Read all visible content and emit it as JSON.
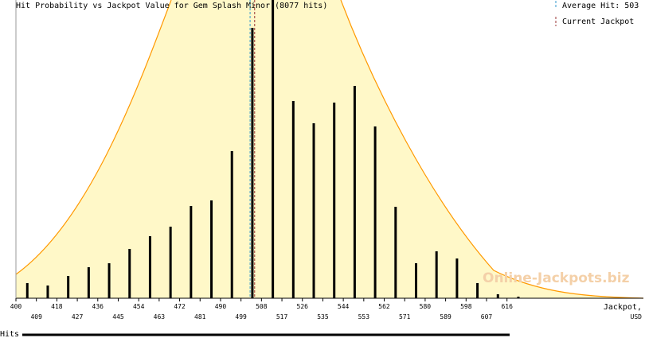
{
  "chart_data": {
    "type": "bar",
    "title": "Hit Probability vs Jackpot Value for Gem Splash Minor (8077 hits)",
    "x": [
      405,
      414,
      423,
      432,
      441,
      450,
      459,
      468,
      477,
      486,
      495,
      504,
      513,
      522,
      531,
      540,
      549,
      558,
      567,
      576,
      585,
      594,
      603,
      612,
      621
    ],
    "values": [
      19,
      16,
      28,
      39,
      44,
      62,
      78,
      90,
      116,
      123,
      185,
      340,
      375,
      248,
      220,
      246,
      267,
      216,
      115,
      44,
      59,
      50,
      19,
      5,
      2
    ],
    "color": "#000000",
    "xlim": [
      400,
      676
    ],
    "ylim": [
      0,
      375
    ],
    "xticks": [
      400,
      409,
      418,
      427,
      436,
      445,
      454,
      463,
      472,
      481,
      490,
      499,
      508,
      517,
      526,
      535,
      544,
      553,
      562,
      571,
      580,
      589,
      598,
      607,
      616
    ],
    "x_label": [
      "Jackpot,",
      "USD"
    ],
    "average_hit": 503,
    "average_hit_label": "Average Hit: 503",
    "average_hit_color": "#3399cc",
    "current_jackpot": 505,
    "current_jackpot_label": "Current Jackpot",
    "current_jackpot_color": "#993333",
    "watermark": "Online-Jackpots.biz",
    "bottom_label": "Hits"
  }
}
